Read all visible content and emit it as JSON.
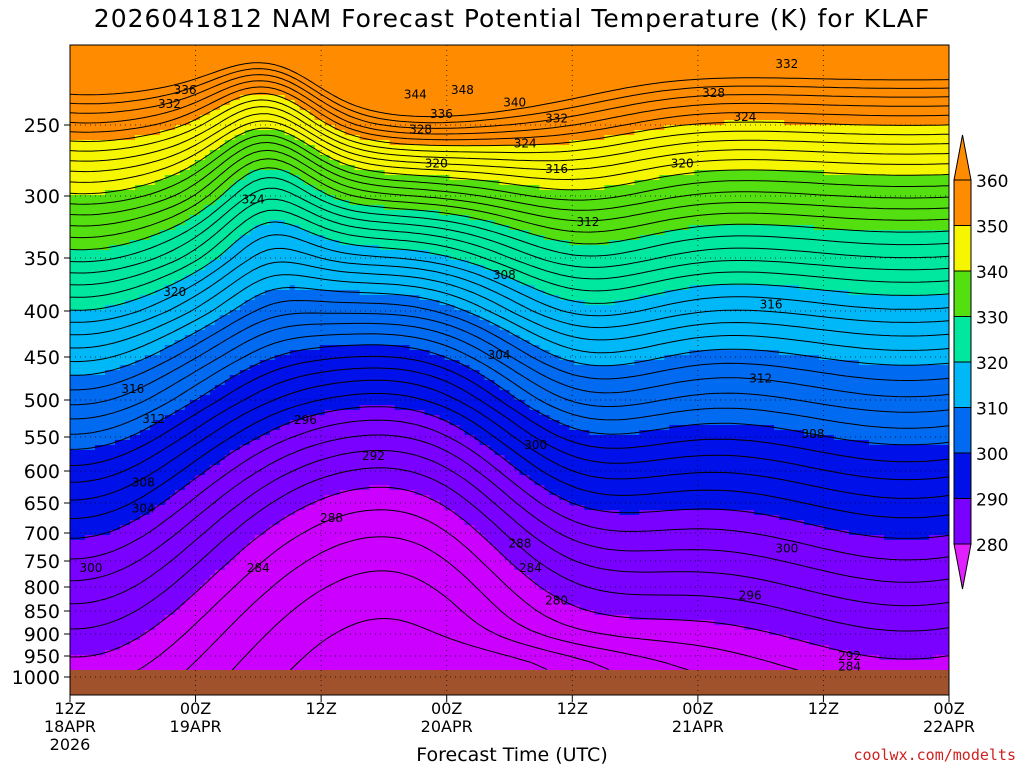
{
  "chart_data": {
    "type": "contour",
    "title": "2026041812 NAM Forecast Potential Temperature (K) for KLAF",
    "xlabel": "Forecast Time (UTC)",
    "credit": "coolwx.com/modelts",
    "x_ticks": [
      {
        "time": "12Z",
        "date": "18APR",
        "year": "2026",
        "hour": 0
      },
      {
        "time": "00Z",
        "date": "19APR",
        "year": "",
        "hour": 12
      },
      {
        "time": "12Z",
        "date": "",
        "year": "",
        "hour": 24
      },
      {
        "time": "00Z",
        "date": "20APR",
        "year": "",
        "hour": 36
      },
      {
        "time": "12Z",
        "date": "",
        "year": "",
        "hour": 48
      },
      {
        "time": "00Z",
        "date": "21APR",
        "year": "",
        "hour": 60
      },
      {
        "time": "12Z",
        "date": "",
        "year": "",
        "hour": 72
      },
      {
        "time": "00Z",
        "date": "22APR",
        "year": "",
        "hour": 84
      }
    ],
    "y_ticks": [
      {
        "label": "250",
        "p": 250
      },
      {
        "label": "300",
        "p": 300
      },
      {
        "label": "350",
        "p": 350
      },
      {
        "label": "400",
        "p": 400
      },
      {
        "label": "450",
        "p": 450
      },
      {
        "label": "500",
        "p": 500
      },
      {
        "label": "550",
        "p": 550
      },
      {
        "label": "600",
        "p": 600
      },
      {
        "label": "650",
        "p": 650
      },
      {
        "label": "700",
        "p": 700
      },
      {
        "label": "750",
        "p": 750
      },
      {
        "label": "800",
        "p": 800
      },
      {
        "label": "850",
        "p": 850
      },
      {
        "label": "900",
        "p": 900
      },
      {
        "label": "950",
        "p": 950
      },
      {
        "label": "1000",
        "p": 1000
      }
    ],
    "xlim": [
      0,
      84
    ],
    "ylim_pressure": [
      1000,
      200
    ],
    "colorbar": {
      "levels": [
        {
          "value": 280,
          "label": "280",
          "color": "#cc00ff"
        },
        {
          "value": 290,
          "label": "290",
          "color": "#7a00ff"
        },
        {
          "value": 300,
          "label": "300",
          "color": "#0010e8"
        },
        {
          "value": 310,
          "label": "310",
          "color": "#006af0"
        },
        {
          "value": 320,
          "label": "320",
          "color": "#00b8f8"
        },
        {
          "value": 330,
          "label": "330",
          "color": "#00e8a0"
        },
        {
          "value": 340,
          "label": "340",
          "color": "#54e010"
        },
        {
          "value": 350,
          "label": "350",
          "color": "#f6f600"
        },
        {
          "value": 360,
          "label": "360",
          "color": "#ff8c00"
        }
      ],
      "top_color": "#ff8c00",
      "bottom_color": "#e020ff"
    },
    "contour_labels": [
      {
        "text": "336",
        "hour": 11,
        "p": 228
      },
      {
        "text": "332",
        "hour": 9.5,
        "p": 237
      },
      {
        "text": "344",
        "hour": 33,
        "p": 231
      },
      {
        "text": "348",
        "hour": 37.5,
        "p": 228
      },
      {
        "text": "340",
        "hour": 42.5,
        "p": 236
      },
      {
        "text": "336",
        "hour": 35.5,
        "p": 243
      },
      {
        "text": "332",
        "hour": 46.5,
        "p": 246
      },
      {
        "text": "332",
        "hour": 68.5,
        "p": 212
      },
      {
        "text": "328",
        "hour": 61.5,
        "p": 230
      },
      {
        "text": "324",
        "hour": 64.5,
        "p": 245
      },
      {
        "text": "328",
        "hour": 33.5,
        "p": 253
      },
      {
        "text": "324",
        "hour": 43.5,
        "p": 263
      },
      {
        "text": "320",
        "hour": 35,
        "p": 277
      },
      {
        "text": "316",
        "hour": 46.5,
        "p": 281
      },
      {
        "text": "320",
        "hour": 58.5,
        "p": 277
      },
      {
        "text": "324",
        "hour": 17.5,
        "p": 303
      },
      {
        "text": "312",
        "hour": 49.5,
        "p": 321
      },
      {
        "text": "308",
        "hour": 41.5,
        "p": 366
      },
      {
        "text": "320",
        "hour": 10,
        "p": 382
      },
      {
        "text": "316",
        "hour": 67,
        "p": 394
      },
      {
        "text": "304",
        "hour": 41,
        "p": 448
      },
      {
        "text": "312",
        "hour": 66,
        "p": 475
      },
      {
        "text": "316",
        "hour": 6,
        "p": 487
      },
      {
        "text": "296",
        "hour": 22.5,
        "p": 527
      },
      {
        "text": "312",
        "hour": 8,
        "p": 526
      },
      {
        "text": "308",
        "hour": 71,
        "p": 546
      },
      {
        "text": "300",
        "hour": 44.5,
        "p": 562
      },
      {
        "text": "292",
        "hour": 29,
        "p": 578
      },
      {
        "text": "308",
        "hour": 7,
        "p": 618
      },
      {
        "text": "304",
        "hour": 7,
        "p": 659
      },
      {
        "text": "288",
        "hour": 25,
        "p": 675
      },
      {
        "text": "288",
        "hour": 43,
        "p": 719
      },
      {
        "text": "300",
        "hour": 68.5,
        "p": 728
      },
      {
        "text": "284",
        "hour": 18,
        "p": 763
      },
      {
        "text": "284",
        "hour": 44,
        "p": 763
      },
      {
        "text": "300",
        "hour": 2,
        "p": 763
      },
      {
        "text": "296",
        "hour": 65,
        "p": 818
      },
      {
        "text": "280",
        "hour": 46.5,
        "p": 828
      },
      {
        "text": "292",
        "hour": 74.5,
        "p": 950
      },
      {
        "text": "284",
        "hour": 74.5,
        "p": 975
      }
    ]
  }
}
